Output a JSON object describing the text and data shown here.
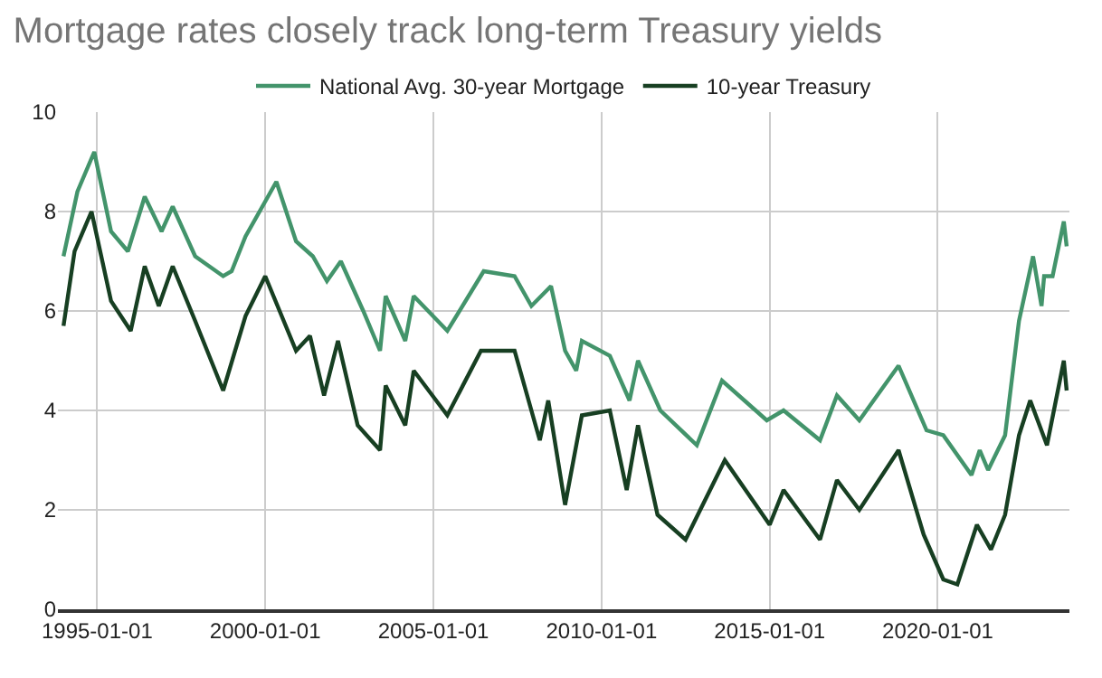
{
  "chart_data": {
    "type": "line",
    "title": "Mortgage rates closely track long-term Treasury yields",
    "legend": "top",
    "grid": true,
    "marker": "none",
    "line_style": "solid",
    "xlim": [
      "1993-11-01",
      "2023-12-01"
    ],
    "xticks": [
      "1995-01-01",
      "2000-01-01",
      "2005-01-01",
      "2010-01-01",
      "2015-01-01",
      "2020-01-01"
    ],
    "ylim": [
      0,
      10
    ],
    "yticks": [
      0,
      2,
      4,
      6,
      8,
      10
    ],
    "series": [
      {
        "name": "National Avg. 30-year Mortgage",
        "color": "#43946b",
        "x": [
          "1994-01",
          "1994-06",
          "1994-12",
          "1995-06",
          "1995-12",
          "1996-06",
          "1996-12",
          "1997-04",
          "1997-12",
          "1998-10",
          "1999-01",
          "1999-06",
          "2000-05",
          "2000-12",
          "2001-06",
          "2001-11",
          "2002-04",
          "2002-12",
          "2003-06",
          "2003-08",
          "2004-03",
          "2004-06",
          "2005-06",
          "2006-07",
          "2007-06",
          "2007-12",
          "2008-07",
          "2008-12",
          "2009-04",
          "2009-06",
          "2010-04",
          "2010-11",
          "2011-02",
          "2011-10",
          "2012-11",
          "2013-08",
          "2014-12",
          "2015-06",
          "2016-07",
          "2017-01",
          "2017-09",
          "2018-11",
          "2019-09",
          "2020-03",
          "2021-01",
          "2021-04",
          "2021-07",
          "2022-01",
          "2022-06",
          "2022-11",
          "2023-02",
          "2023-03",
          "2023-06",
          "2023-10",
          "2023-11"
        ],
        "values": [
          7.1,
          8.4,
          9.2,
          7.6,
          7.2,
          8.3,
          7.6,
          8.1,
          7.1,
          6.7,
          6.8,
          7.5,
          8.6,
          7.4,
          7.1,
          6.6,
          7.0,
          6.0,
          5.2,
          6.3,
          5.4,
          6.3,
          5.6,
          6.8,
          6.7,
          6.1,
          6.5,
          5.2,
          4.8,
          5.4,
          5.1,
          4.2,
          5.0,
          4.0,
          3.3,
          4.6,
          3.8,
          4.0,
          3.4,
          4.3,
          3.8,
          4.9,
          3.6,
          3.5,
          2.7,
          3.2,
          2.8,
          3.5,
          5.8,
          7.1,
          6.1,
          6.7,
          6.7,
          7.8,
          7.3
        ]
      },
      {
        "name": "10-year Treasury",
        "color": "#173f22",
        "x": [
          "1994-01",
          "1994-05",
          "1994-11",
          "1995-06",
          "1996-01",
          "1996-06",
          "1996-11",
          "1997-04",
          "1997-12",
          "1998-10",
          "1999-06",
          "2000-01",
          "2000-12",
          "2001-05",
          "2001-10",
          "2002-03",
          "2002-10",
          "2003-06",
          "2003-08",
          "2004-03",
          "2004-06",
          "2005-06",
          "2006-06",
          "2007-06",
          "2008-03",
          "2008-06",
          "2008-12",
          "2009-06",
          "2010-04",
          "2010-10",
          "2011-02",
          "2011-09",
          "2012-07",
          "2013-09",
          "2015-01",
          "2015-06",
          "2016-07",
          "2017-01",
          "2017-09",
          "2018-11",
          "2019-08",
          "2020-03",
          "2020-08",
          "2021-03",
          "2021-08",
          "2022-01",
          "2022-06",
          "2022-10",
          "2023-04",
          "2023-10",
          "2023-11"
        ],
        "values": [
          5.7,
          7.2,
          8.0,
          6.2,
          5.6,
          6.9,
          6.1,
          6.9,
          5.8,
          4.4,
          5.9,
          6.7,
          5.2,
          5.5,
          4.3,
          5.4,
          3.7,
          3.2,
          4.5,
          3.7,
          4.8,
          3.9,
          5.2,
          5.2,
          3.4,
          4.2,
          2.1,
          3.9,
          4.0,
          2.4,
          3.7,
          1.9,
          1.4,
          3.0,
          1.7,
          2.4,
          1.4,
          2.6,
          2.0,
          3.2,
          1.5,
          0.6,
          0.5,
          1.7,
          1.2,
          1.9,
          3.5,
          4.2,
          3.3,
          5.0,
          4.4
        ]
      }
    ]
  }
}
